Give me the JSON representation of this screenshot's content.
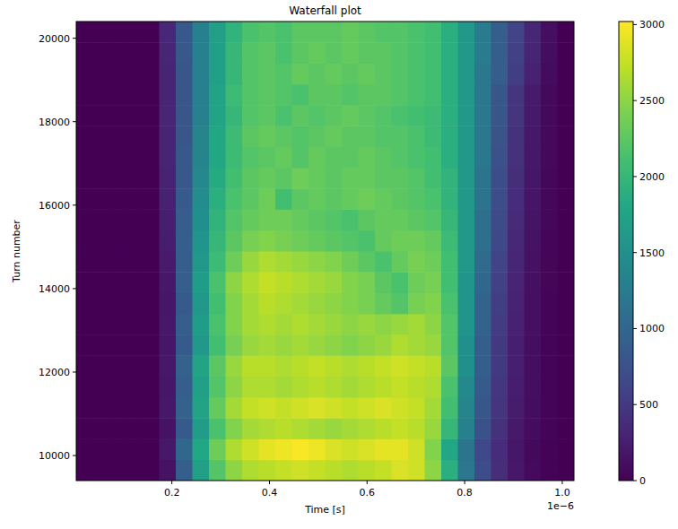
{
  "chart_data": {
    "type": "heatmap",
    "title": "Waterfall plot",
    "x_label": "Time [s]",
    "y_label": "Turn number",
    "x_offset_label": "1e−6",
    "x": [
      2.1e-08,
      5.5e-08,
      8.9e-08,
      1.23e-07,
      1.57e-07,
      1.91e-07,
      2.25e-07,
      2.59e-07,
      2.93e-07,
      3.27e-07,
      3.61e-07,
      3.95e-07,
      4.29e-07,
      4.63e-07,
      4.97e-07,
      5.31e-07,
      5.65e-07,
      5.99e-07,
      6.33e-07,
      6.67e-07,
      7.01e-07,
      7.35e-07,
      7.69e-07,
      8.03e-07,
      8.37e-07,
      8.71e-07,
      9.05e-07,
      9.39e-07,
      9.73e-07,
      1.007e-06
    ],
    "y": [
      9650,
      10150,
      10650,
      11150,
      11650,
      12150,
      12650,
      13150,
      13650,
      14150,
      14650,
      15150,
      15650,
      16150,
      16650,
      17150,
      17650,
      18150,
      18650,
      19150,
      19650,
      20150
    ],
    "cells": [
      [
        0,
        0,
        0,
        0,
        0,
        150,
        900,
        1700,
        2200,
        2500,
        2650,
        2700,
        2750,
        2800,
        2750,
        2700,
        2650,
        2700,
        2750,
        2850,
        2800,
        2500,
        1900,
        1200,
        700,
        400,
        200,
        80,
        20,
        0
      ],
      [
        0,
        0,
        0,
        0,
        0,
        200,
        1000,
        1800,
        2350,
        2650,
        2800,
        2900,
        2950,
        3000,
        2950,
        2850,
        2800,
        2850,
        2900,
        2900,
        2800,
        2450,
        1800,
        1150,
        650,
        380,
        180,
        70,
        20,
        0
      ],
      [
        0,
        0,
        0,
        0,
        0,
        150,
        850,
        1650,
        2150,
        2450,
        2600,
        2650,
        2700,
        2650,
        2600,
        2550,
        2600,
        2650,
        2700,
        2750,
        2700,
        2550,
        2000,
        1300,
        750,
        420,
        210,
        90,
        25,
        0
      ],
      [
        0,
        0,
        0,
        0,
        0,
        200,
        950,
        1750,
        2300,
        2600,
        2750,
        2800,
        2750,
        2800,
        2850,
        2800,
        2750,
        2800,
        2850,
        2800,
        2750,
        2600,
        2100,
        1350,
        800,
        450,
        230,
        100,
        30,
        0
      ],
      [
        0,
        0,
        0,
        0,
        0,
        180,
        900,
        1700,
        2200,
        2500,
        2650,
        2650,
        2600,
        2650,
        2700,
        2650,
        2600,
        2650,
        2700,
        2750,
        2700,
        2650,
        2150,
        1400,
        850,
        480,
        250,
        110,
        30,
        0
      ],
      [
        0,
        0,
        0,
        0,
        0,
        200,
        950,
        1750,
        2250,
        2550,
        2700,
        2700,
        2650,
        2700,
        2750,
        2700,
        2650,
        2700,
        2750,
        2800,
        2750,
        2700,
        2250,
        1500,
        900,
        500,
        260,
        110,
        30,
        0
      ],
      [
        0,
        0,
        0,
        0,
        0,
        180,
        850,
        1600,
        2100,
        2400,
        2550,
        2600,
        2550,
        2600,
        2550,
        2500,
        2450,
        2500,
        2550,
        2650,
        2600,
        2550,
        2200,
        1500,
        900,
        500,
        260,
        110,
        30,
        0
      ],
      [
        0,
        0,
        0,
        0,
        0,
        200,
        900,
        1650,
        2150,
        2450,
        2600,
        2650,
        2600,
        2650,
        2600,
        2550,
        2500,
        2550,
        2500,
        2550,
        2600,
        2500,
        2200,
        1550,
        950,
        530,
        280,
        120,
        35,
        0
      ],
      [
        0,
        0,
        0,
        0,
        0,
        180,
        850,
        1600,
        2100,
        2450,
        2600,
        2700,
        2650,
        2600,
        2550,
        2500,
        2450,
        2400,
        2300,
        2200,
        2400,
        2450,
        2150,
        1550,
        950,
        550,
        290,
        120,
        35,
        0
      ],
      [
        0,
        0,
        0,
        0,
        0,
        200,
        900,
        1650,
        2150,
        2500,
        2650,
        2750,
        2700,
        2650,
        2600,
        2550,
        2450,
        2400,
        2250,
        2150,
        2350,
        2400,
        2100,
        1550,
        1000,
        580,
        300,
        130,
        40,
        0
      ],
      [
        0,
        0,
        0,
        0,
        0,
        220,
        900,
        1600,
        2050,
        2350,
        2550,
        2650,
        2600,
        2550,
        2500,
        2450,
        2350,
        2250,
        2150,
        2300,
        2400,
        2350,
        2100,
        1600,
        1050,
        600,
        320,
        140,
        40,
        0
      ],
      [
        0,
        0,
        0,
        0,
        0,
        250,
        900,
        1550,
        2000,
        2250,
        2400,
        2450,
        2400,
        2350,
        2300,
        2250,
        2200,
        2150,
        2300,
        2350,
        2350,
        2300,
        2050,
        1600,
        1100,
        650,
        340,
        150,
        45,
        0
      ],
      [
        0,
        0,
        0,
        0,
        0,
        260,
        880,
        1500,
        1950,
        2200,
        2300,
        2350,
        2350,
        2300,
        2250,
        2200,
        2150,
        2250,
        2300,
        2300,
        2250,
        2200,
        2000,
        1600,
        1100,
        680,
        360,
        160,
        50,
        0
      ],
      [
        0,
        0,
        0,
        0,
        0,
        280,
        850,
        1450,
        1900,
        2150,
        2250,
        2350,
        2100,
        2250,
        2300,
        2250,
        2300,
        2350,
        2300,
        2250,
        2200,
        2150,
        1950,
        1600,
        1150,
        700,
        380,
        170,
        50,
        0
      ],
      [
        0,
        0,
        0,
        0,
        0,
        290,
        820,
        1400,
        1850,
        2100,
        2250,
        2300,
        2250,
        2350,
        2300,
        2250,
        2300,
        2300,
        2250,
        2250,
        2200,
        2100,
        1950,
        1600,
        1150,
        720,
        400,
        180,
        55,
        0
      ],
      [
        0,
        0,
        0,
        0,
        0,
        300,
        820,
        1350,
        1800,
        2050,
        2200,
        2250,
        2300,
        2200,
        2300,
        2250,
        2250,
        2300,
        2250,
        2200,
        2150,
        2100,
        1900,
        1600,
        1200,
        750,
        420,
        190,
        60,
        0
      ],
      [
        0,
        0,
        0,
        0,
        0,
        300,
        800,
        1350,
        1800,
        2050,
        2250,
        2300,
        2250,
        2200,
        2250,
        2300,
        2250,
        2250,
        2200,
        2200,
        2150,
        2050,
        1900,
        1600,
        1200,
        780,
        430,
        200,
        60,
        0
      ],
      [
        0,
        0,
        0,
        0,
        0,
        310,
        800,
        1300,
        1750,
        2000,
        2200,
        2250,
        2150,
        2250,
        2200,
        2250,
        2300,
        2250,
        2200,
        2150,
        2100,
        2050,
        1900,
        1600,
        1200,
        800,
        450,
        210,
        65,
        0
      ],
      [
        0,
        0,
        0,
        0,
        0,
        300,
        800,
        1300,
        1750,
        2050,
        2200,
        2250,
        2200,
        2150,
        2250,
        2250,
        2200,
        2250,
        2250,
        2200,
        2150,
        2100,
        1900,
        1600,
        1200,
        800,
        460,
        220,
        70,
        0
      ],
      [
        0,
        0,
        0,
        0,
        0,
        300,
        800,
        1300,
        1700,
        2000,
        2200,
        2250,
        2200,
        2300,
        2250,
        2300,
        2250,
        2300,
        2250,
        2200,
        2150,
        2100,
        1900,
        1600,
        1200,
        900,
        550,
        280,
        90,
        0
      ],
      [
        0,
        0,
        0,
        0,
        0,
        320,
        820,
        1300,
        1700,
        2000,
        2200,
        2250,
        2150,
        2250,
        2300,
        2250,
        2300,
        2250,
        2250,
        2200,
        2150,
        2100,
        1900,
        1600,
        1250,
        900,
        580,
        300,
        100,
        0
      ],
      [
        0,
        0,
        0,
        0,
        0,
        330,
        830,
        1300,
        1700,
        1950,
        2150,
        2200,
        2150,
        2250,
        2250,
        2250,
        2300,
        2250,
        2200,
        2200,
        2150,
        2100,
        1900,
        1600,
        1250,
        900,
        600,
        320,
        110,
        0
      ]
    ],
    "xlim": [
      4e-09,
      1.024e-06
    ],
    "ylim": [
      9400,
      20400
    ],
    "xticks": [
      {
        "value": 2e-07,
        "label": "0.2"
      },
      {
        "value": 4e-07,
        "label": "0.4"
      },
      {
        "value": 6e-07,
        "label": "0.6"
      },
      {
        "value": 8e-07,
        "label": "0.8"
      },
      {
        "value": 1e-06,
        "label": "1.0"
      }
    ],
    "yticks": [
      10000,
      12000,
      14000,
      16000,
      18000,
      20000
    ],
    "color": "viridis",
    "colorbar_range": [
      0,
      3020
    ],
    "colorbar_ticks": [
      0,
      500,
      1000,
      1500,
      2000,
      2500,
      3000
    ],
    "grid": false
  }
}
